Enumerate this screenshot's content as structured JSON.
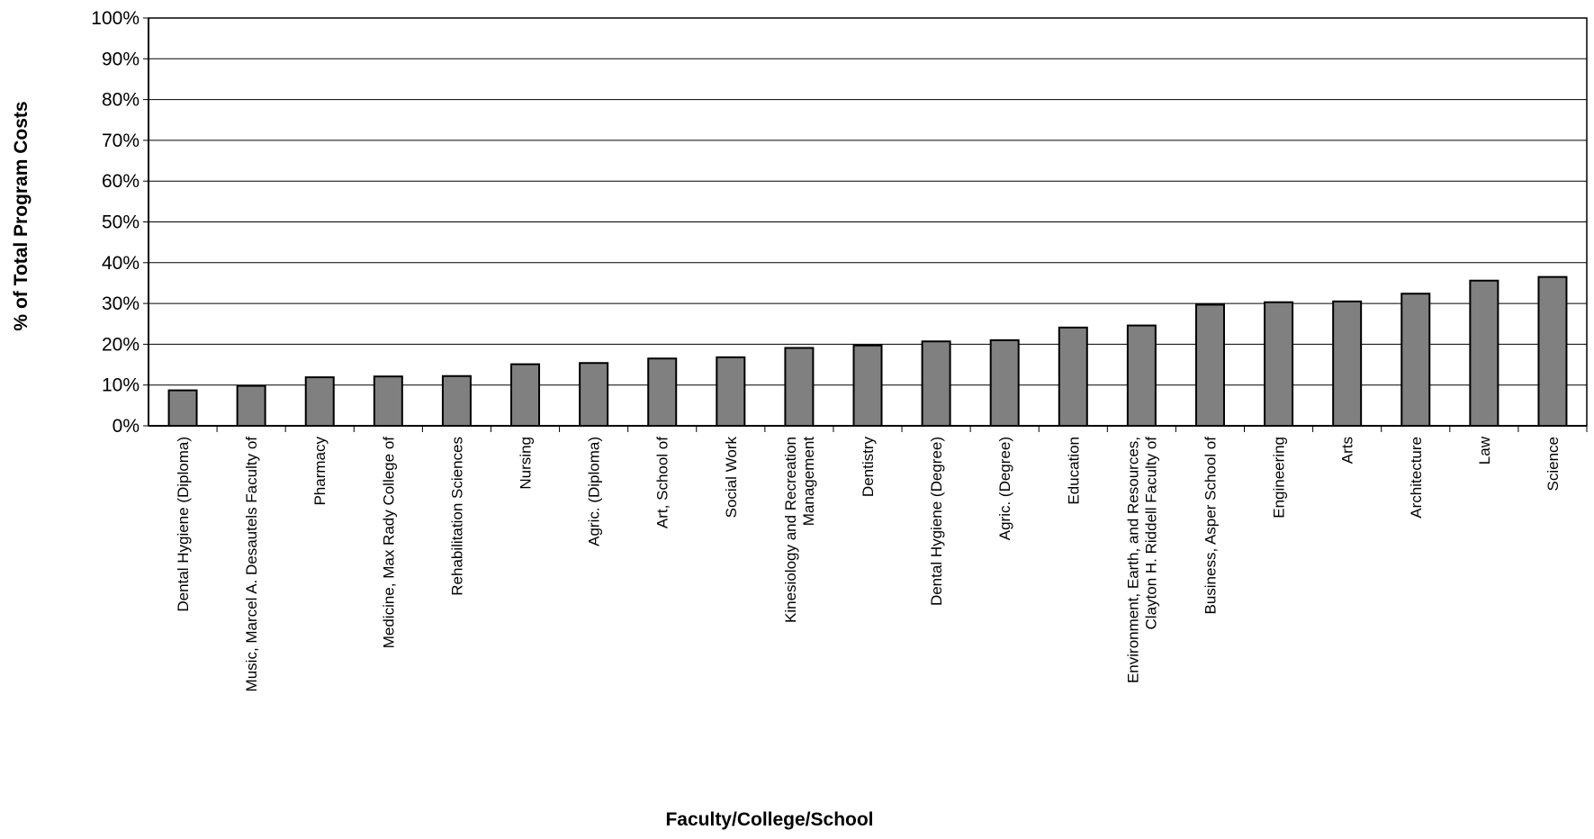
{
  "chart_data": {
    "type": "bar",
    "title": "",
    "xlabel": "Faculty/College/School",
    "ylabel": "% of Total Program Costs",
    "ylim": [
      0,
      100
    ],
    "yticks": [
      "0%",
      "10%",
      "20%",
      "30%",
      "40%",
      "50%",
      "60%",
      "70%",
      "80%",
      "90%",
      "100%"
    ],
    "grid": true,
    "legend": "none",
    "bar_color": "#808080",
    "categories": [
      [
        "Dental Hygiene (Diploma)"
      ],
      [
        "Music, Marcel A. Desautels Faculty of"
      ],
      [
        "Pharmacy"
      ],
      [
        "Medicine, Max Rady College of"
      ],
      [
        "Rehabilitation Sciences"
      ],
      [
        "Nursing"
      ],
      [
        "Agric. (Diploma)"
      ],
      [
        "Art, School of"
      ],
      [
        "Social Work"
      ],
      [
        "Kinesiology and Recreation",
        "Management"
      ],
      [
        "Dentistry"
      ],
      [
        "Dental Hygiene (Degree)"
      ],
      [
        "Agric. (Degree)"
      ],
      [
        "Education"
      ],
      [
        "Environment, Earth, and Resources,",
        "Clayton H. Riddell Faculty of"
      ],
      [
        "Business, Asper School of"
      ],
      [
        "Engineering"
      ],
      [
        "Arts"
      ],
      [
        "Architecture"
      ],
      [
        "Law"
      ],
      [
        "Science"
      ]
    ],
    "values": [
      8.7,
      9.8,
      11.9,
      12.1,
      12.2,
      15.1,
      15.4,
      16.5,
      16.8,
      19.1,
      19.7,
      20.7,
      21.0,
      24.1,
      24.6,
      29.7,
      30.3,
      30.5,
      32.4,
      35.6,
      36.5
    ]
  }
}
